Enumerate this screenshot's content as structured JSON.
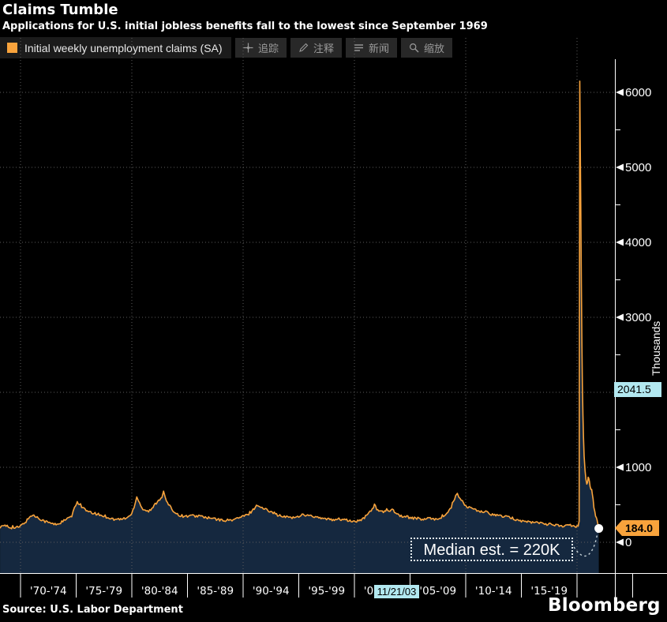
{
  "header": {
    "title": "Claims Tumble",
    "subtitle": "Applications for U.S. initial jobless benefits fall to the lowest since September 1969"
  },
  "legend": {
    "label": "Initial weekly unemployment claims (SA)"
  },
  "toolbar": {
    "buttons": [
      {
        "icon": "crosshair-icon",
        "label": "追踪"
      },
      {
        "icon": "pencil-icon",
        "label": "注释"
      },
      {
        "icon": "news-list-icon",
        "label": "新闻"
      },
      {
        "icon": "magnifier-icon",
        "label": "缩放"
      }
    ]
  },
  "colors": {
    "line_orange": "#F8A33C",
    "area_navy": "#15283F",
    "badge_cyan": "#B2E8F0",
    "grid_gray": "#5D5D5D",
    "axis_white": "#FFFFFF",
    "legend_bg": "#1B1B1B"
  },
  "y_axis": {
    "unit_label": "Thousands",
    "tick_labels": [
      "0",
      "1000",
      "2000",
      "3000",
      "4000",
      "5000",
      "6000"
    ],
    "tracker_value": "2041.5",
    "last_value": "184.0"
  },
  "x_axis": {
    "period_labels": [
      "'70-'74",
      "'75-'79",
      "'80-'84",
      "'85-'89",
      "'90-'94",
      "'95-'99",
      "'00-'04",
      "'05-'09",
      "'10-'14",
      "'15-'19"
    ],
    "tracker_date": "11/21/03"
  },
  "annotation": {
    "median_label": "Median est. = 220K"
  },
  "footer": {
    "source": "Source: U.S. Labor Department",
    "brand": "Bloomberg"
  },
  "chart_data": {
    "type": "area",
    "title": "Initial weekly unemployment claims (SA)",
    "ylabel": "Thousands",
    "xlabel": "",
    "grid": "dotted",
    "legend_position": "top-left",
    "ylim": [
      -410,
      6440
    ],
    "xlim_years": [
      1968.16,
      2023.4
    ],
    "y_ticks": [
      0,
      1000,
      2000,
      3000,
      4000,
      5000,
      6000
    ],
    "y_minor_ticks": [
      500,
      1500,
      2500,
      3500,
      4500,
      5500
    ],
    "x_gridline_years": [
      1970,
      1980,
      1990,
      2000,
      2010,
      2020
    ],
    "x_tick_years": [
      1970,
      1975,
      1980,
      1985,
      1990,
      1995,
      2000,
      2005,
      2010,
      2015,
      2020,
      2025
    ],
    "tracker": {
      "value": 2041.5,
      "date": "11/21/03"
    },
    "last_point": {
      "value": 184.0,
      "marker": "white-dot"
    },
    "median_estimate_thousands": 220,
    "series": [
      {
        "name": "Initial weekly unemployment claims (SA)",
        "units": "thousands",
        "color": "#F8A33C",
        "fill_color": "#15283F",
        "points": [
          [
            1968.16,
            205
          ],
          [
            1968.6,
            215
          ],
          [
            1969.1,
            200
          ],
          [
            1969.5,
            190
          ],
          [
            1969.9,
            205
          ],
          [
            1970.2,
            240
          ],
          [
            1970.5,
            280
          ],
          [
            1970.8,
            330
          ],
          [
            1971.1,
            360
          ],
          [
            1971.4,
            340
          ],
          [
            1971.8,
            310
          ],
          [
            1972.2,
            280
          ],
          [
            1972.6,
            260
          ],
          [
            1973,
            240
          ],
          [
            1973.4,
            245
          ],
          [
            1973.8,
            280
          ],
          [
            1974.2,
            310
          ],
          [
            1974.6,
            350
          ],
          [
            1974.85,
            450
          ],
          [
            1975.1,
            540
          ],
          [
            1975.3,
            510
          ],
          [
            1975.6,
            460
          ],
          [
            1976,
            410
          ],
          [
            1976.4,
            390
          ],
          [
            1976.8,
            380
          ],
          [
            1977.2,
            360
          ],
          [
            1977.6,
            345
          ],
          [
            1978,
            325
          ],
          [
            1978.4,
            305
          ],
          [
            1978.8,
            300
          ],
          [
            1979.2,
            310
          ],
          [
            1979.6,
            330
          ],
          [
            1980,
            380
          ],
          [
            1980.3,
            520
          ],
          [
            1980.45,
            620
          ],
          [
            1980.6,
            560
          ],
          [
            1980.9,
            460
          ],
          [
            1981.2,
            420
          ],
          [
            1981.5,
            415
          ],
          [
            1981.8,
            440
          ],
          [
            1982.1,
            510
          ],
          [
            1982.4,
            560
          ],
          [
            1982.7,
            610
          ],
          [
            1982.85,
            670
          ],
          [
            1983,
            590
          ],
          [
            1983.3,
            500
          ],
          [
            1983.6,
            440
          ],
          [
            1984,
            385
          ],
          [
            1984.4,
            355
          ],
          [
            1984.8,
            345
          ],
          [
            1985.2,
            355
          ],
          [
            1985.6,
            345
          ],
          [
            1986,
            355
          ],
          [
            1986.4,
            340
          ],
          [
            1986.8,
            325
          ],
          [
            1987.2,
            315
          ],
          [
            1987.6,
            305
          ],
          [
            1988,
            295
          ],
          [
            1988.4,
            290
          ],
          [
            1988.8,
            295
          ],
          [
            1989.2,
            305
          ],
          [
            1989.6,
            325
          ],
          [
            1990,
            345
          ],
          [
            1990.4,
            365
          ],
          [
            1990.8,
            420
          ],
          [
            1991.1,
            470
          ],
          [
            1991.3,
            500
          ],
          [
            1991.6,
            460
          ],
          [
            1991.9,
            445
          ],
          [
            1992.2,
            430
          ],
          [
            1992.5,
            415
          ],
          [
            1992.8,
            390
          ],
          [
            1993.1,
            365
          ],
          [
            1993.4,
            345
          ],
          [
            1993.8,
            335
          ],
          [
            1994.2,
            340
          ],
          [
            1994.6,
            325
          ],
          [
            1995,
            345
          ],
          [
            1995.4,
            375
          ],
          [
            1995.7,
            360
          ],
          [
            1996,
            350
          ],
          [
            1996.4,
            335
          ],
          [
            1996.8,
            325
          ],
          [
            1997.2,
            315
          ],
          [
            1997.6,
            305
          ],
          [
            1998,
            300
          ],
          [
            1998.4,
            310
          ],
          [
            1998.8,
            305
          ],
          [
            1999.2,
            295
          ],
          [
            1999.6,
            285
          ],
          [
            2000,
            275
          ],
          [
            2000.4,
            285
          ],
          [
            2000.8,
            310
          ],
          [
            2001.1,
            360
          ],
          [
            2001.4,
            410
          ],
          [
            2001.7,
            470
          ],
          [
            2001.8,
            500
          ],
          [
            2002,
            440
          ],
          [
            2002.3,
            415
          ],
          [
            2002.6,
            400
          ],
          [
            2002.9,
            415
          ],
          [
            2003.2,
            430
          ],
          [
            2003.4,
            440
          ],
          [
            2003.7,
            400
          ],
          [
            2004,
            360
          ],
          [
            2004.4,
            345
          ],
          [
            2004.8,
            335
          ],
          [
            2005.2,
            325
          ],
          [
            2005.6,
            320
          ],
          [
            2006,
            305
          ],
          [
            2006.4,
            310
          ],
          [
            2006.8,
            315
          ],
          [
            2007.2,
            310
          ],
          [
            2007.6,
            320
          ],
          [
            2008,
            350
          ],
          [
            2008.3,
            380
          ],
          [
            2008.6,
            440
          ],
          [
            2008.9,
            530
          ],
          [
            2009.1,
            620
          ],
          [
            2009.25,
            655
          ],
          [
            2009.5,
            575
          ],
          [
            2009.8,
            520
          ],
          [
            2010.1,
            470
          ],
          [
            2010.4,
            460
          ],
          [
            2010.7,
            450
          ],
          [
            2011,
            415
          ],
          [
            2011.3,
            400
          ],
          [
            2011.6,
            415
          ],
          [
            2011.9,
            395
          ],
          [
            2012.2,
            375
          ],
          [
            2012.5,
            370
          ],
          [
            2012.8,
            365
          ],
          [
            2013.1,
            350
          ],
          [
            2013.4,
            345
          ],
          [
            2013.7,
            335
          ],
          [
            2014,
            330
          ],
          [
            2014.3,
            315
          ],
          [
            2014.6,
            300
          ],
          [
            2015,
            285
          ],
          [
            2015.4,
            275
          ],
          [
            2015.8,
            270
          ],
          [
            2016.2,
            265
          ],
          [
            2016.6,
            260
          ],
          [
            2017,
            250
          ],
          [
            2017.4,
            242
          ],
          [
            2017.8,
            236
          ],
          [
            2018.2,
            228
          ],
          [
            2018.6,
            218
          ],
          [
            2019,
            222
          ],
          [
            2019.4,
            216
          ],
          [
            2019.8,
            212
          ],
          [
            2020.1,
            212
          ],
          [
            2020.19,
            282
          ],
          [
            2020.22,
            3300
          ],
          [
            2020.25,
            6150
          ],
          [
            2020.29,
            5300
          ],
          [
            2020.34,
            4450
          ],
          [
            2020.39,
            3450
          ],
          [
            2020.44,
            2650
          ],
          [
            2020.48,
            2100
          ],
          [
            2020.53,
            1700
          ],
          [
            2020.58,
            1400
          ],
          [
            2020.64,
            1150
          ],
          [
            2020.72,
            960
          ],
          [
            2020.8,
            840
          ],
          [
            2020.88,
            770
          ],
          [
            2020.95,
            790
          ],
          [
            2021,
            880
          ],
          [
            2021.05,
            840
          ],
          [
            2021.12,
            790
          ],
          [
            2021.18,
            740
          ],
          [
            2021.25,
            710
          ],
          [
            2021.32,
            680
          ],
          [
            2021.38,
            630
          ],
          [
            2021.45,
            560
          ],
          [
            2021.52,
            470
          ],
          [
            2021.6,
            410
          ],
          [
            2021.67,
            365
          ],
          [
            2021.74,
            325
          ],
          [
            2021.8,
            295
          ],
          [
            2021.85,
            265
          ],
          [
            2021.9,
            235
          ],
          [
            2021.94,
            205
          ],
          [
            2021.96,
            184
          ]
        ]
      }
    ]
  }
}
